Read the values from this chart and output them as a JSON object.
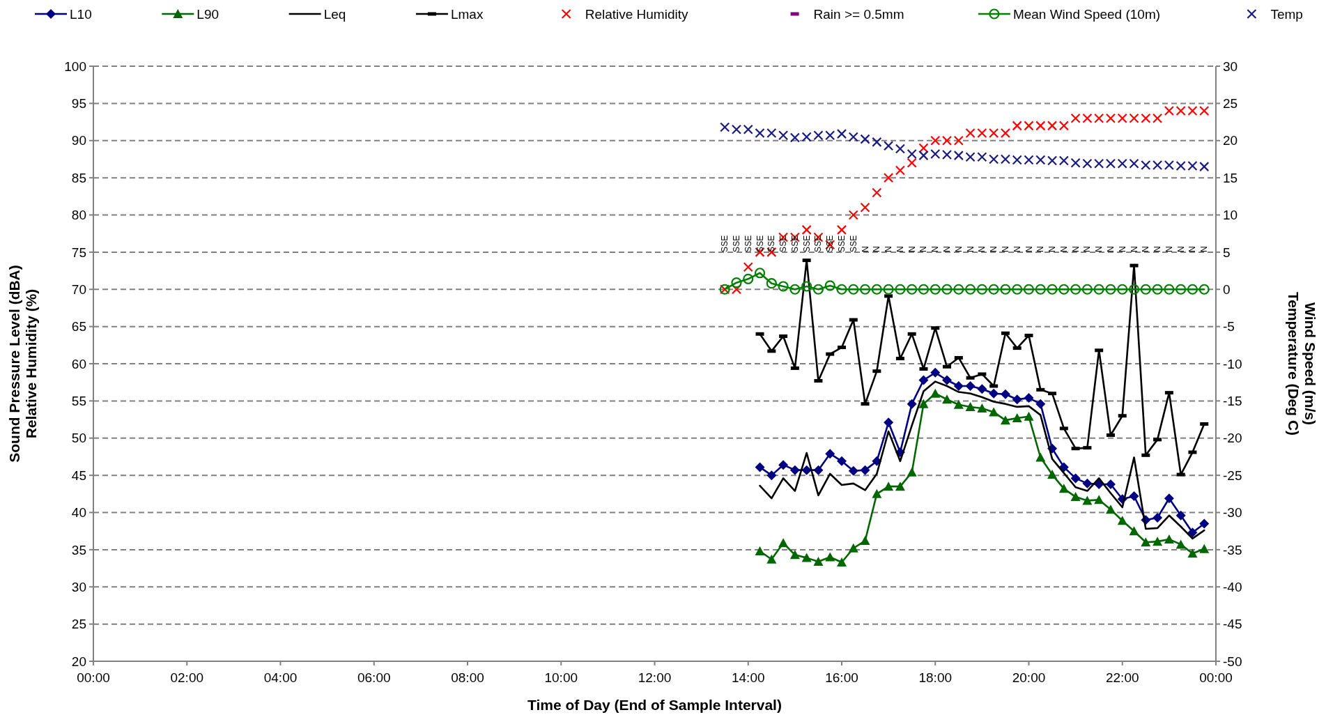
{
  "chart_data": {
    "type": "line",
    "xlabel": "Time of Day (End of Sample Interval)",
    "ylabel": "Sound Pressure Level (dBA)\nRelative Humidity (%)",
    "y2label": "Wind Speed (m/s)\nTemperature (Deg C)",
    "x": [
      13.5,
      13.75,
      14,
      14.25,
      14.5,
      14.75,
      15,
      15.25,
      15.5,
      15.75,
      16,
      16.25,
      16.5,
      16.75,
      17,
      17.25,
      17.5,
      17.75,
      18,
      18.25,
      18.5,
      18.75,
      19,
      19.25,
      19.5,
      19.75,
      20,
      20.25,
      20.5,
      20.75,
      21,
      21.25,
      21.5,
      21.75,
      22,
      22.25,
      22.5,
      22.75,
      23,
      23.25,
      23.5,
      23.75
    ],
    "xlim": [
      0,
      24
    ],
    "xticks": [
      {
        "value": 0,
        "label": "00:00"
      },
      {
        "value": 2,
        "label": "02:00"
      },
      {
        "value": 4,
        "label": "04:00"
      },
      {
        "value": 6,
        "label": "06:00"
      },
      {
        "value": 8,
        "label": "08:00"
      },
      {
        "value": 10,
        "label": "10:00"
      },
      {
        "value": 12,
        "label": "12:00"
      },
      {
        "value": 14,
        "label": "14:00"
      },
      {
        "value": 16,
        "label": "16:00"
      },
      {
        "value": 18,
        "label": "18:00"
      },
      {
        "value": 20,
        "label": "20:00"
      },
      {
        "value": 22,
        "label": "22:00"
      },
      {
        "value": 24,
        "label": "00:00"
      }
    ],
    "ylim": [
      20,
      100
    ],
    "yticks": [
      20,
      25,
      30,
      35,
      40,
      45,
      50,
      55,
      60,
      65,
      70,
      75,
      80,
      85,
      90,
      95,
      100
    ],
    "y2lim": [
      -50,
      30
    ],
    "y2ticks": [
      -50,
      -45,
      -40,
      -35,
      -30,
      -25,
      -20,
      -15,
      -10,
      -5,
      0,
      5,
      10,
      15,
      20,
      25,
      30
    ],
    "grid": "y",
    "legend": "top",
    "series": [
      {
        "name": "L10",
        "marker": "diamond",
        "color": "#000080",
        "values": [
          null,
          null,
          null,
          46.1,
          45.0,
          46.4,
          45.7,
          45.7,
          45.7,
          47.9,
          46.9,
          45.6,
          45.7,
          46.9,
          52.1,
          48.1,
          54.6,
          57.8,
          58.8,
          57.8,
          57.0,
          57.0,
          56.6,
          56.0,
          55.9,
          55.2,
          55.4,
          54.6,
          48.6,
          46.1,
          44.6,
          43.9,
          43.8,
          43.8,
          41.8,
          42.2,
          39.0,
          39.3,
          41.9,
          39.6,
          37.3,
          38.5
        ]
      },
      {
        "name": "L90",
        "marker": "triangle",
        "color": "#006600",
        "values": [
          null,
          null,
          null,
          34.8,
          33.7,
          35.9,
          34.3,
          33.9,
          33.4,
          34.0,
          33.3,
          35.2,
          36.2,
          42.5,
          43.5,
          43.5,
          45.4,
          54.6,
          56.0,
          55.2,
          54.5,
          54.2,
          54.0,
          53.5,
          52.4,
          52.7,
          52.9,
          47.4,
          45.1,
          43.2,
          42.1,
          41.6,
          41.7,
          40.4,
          38.9,
          37.5,
          36.0,
          36.1,
          36.4,
          35.7,
          34.5,
          35.1
        ]
      },
      {
        "name": "Leq",
        "marker": "none",
        "color": "#000000",
        "values": [
          null,
          null,
          null,
          43.6,
          41.9,
          44.6,
          42.9,
          48.0,
          42.3,
          45.2,
          43.7,
          43.9,
          43.0,
          45.2,
          50.9,
          46.9,
          51.7,
          56.3,
          57.6,
          57.0,
          56.2,
          56.0,
          55.5,
          54.9,
          54.6,
          54.2,
          54.3,
          53.1,
          47.2,
          45.3,
          43.4,
          42.9,
          44.6,
          42.6,
          40.7,
          47.4,
          37.8,
          37.9,
          39.6,
          38.1,
          36.5,
          37.6
        ]
      },
      {
        "name": "Lmax",
        "marker": "square",
        "color": "#000000",
        "values": [
          null,
          null,
          null,
          64.0,
          61.7,
          63.7,
          59.4,
          73.9,
          57.7,
          61.3,
          62.2,
          65.9,
          54.6,
          59.0,
          69.1,
          60.7,
          64.0,
          59.3,
          64.8,
          59.6,
          60.8,
          58.1,
          58.6,
          57.0,
          64.1,
          62.1,
          63.8,
          56.5,
          56.0,
          51.3,
          48.6,
          48.7,
          61.8,
          50.4,
          53.0,
          73.2,
          47.7,
          49.8,
          56.1,
          45.1,
          48.1,
          51.9
        ]
      },
      {
        "name": "Relative Humidity",
        "type": "scatter",
        "marker": "cross",
        "color": "#ff0000",
        "values": [
          70,
          70,
          73,
          75,
          75,
          77,
          77,
          78,
          77,
          76,
          78,
          80,
          81,
          83,
          85,
          86,
          87,
          89,
          90,
          90,
          90,
          91,
          91,
          91,
          91,
          92,
          92,
          92,
          92,
          92,
          93,
          93,
          93,
          93,
          93,
          93,
          93,
          93,
          94,
          94,
          94,
          94
        ]
      },
      {
        "name": "Rain >= 0.5mm",
        "type": "scatter",
        "marker": "square",
        "color": "#800080",
        "values": [
          null,
          null,
          null,
          null,
          null,
          null,
          null,
          null,
          null,
          null,
          null,
          null,
          null,
          null,
          null,
          null,
          null,
          null,
          null,
          null,
          null,
          null,
          null,
          null,
          null,
          null,
          null,
          null,
          null,
          null,
          null,
          null,
          null,
          null,
          null,
          null,
          null,
          null,
          null,
          null,
          null,
          null
        ]
      },
      {
        "name": "Mean Wind Speed (10m)",
        "marker": "circle",
        "axis": "y2",
        "color": "#008000",
        "values": [
          0,
          0.9,
          1.4,
          2.2,
          0.8,
          0.4,
          0,
          0.4,
          0,
          0.5,
          0,
          0,
          0,
          0,
          0,
          0,
          0,
          0,
          0,
          0,
          0,
          0,
          0,
          0,
          0,
          0,
          0,
          0,
          0,
          0,
          0,
          0,
          0,
          0,
          0,
          0,
          0,
          0,
          0,
          0,
          0,
          0
        ]
      },
      {
        "name": "Temp",
        "type": "scatter",
        "marker": "cross",
        "axis": "y2",
        "color": "#1a1a80",
        "values": [
          21.8,
          21.5,
          21.5,
          21,
          21,
          20.7,
          20.4,
          20.5,
          20.7,
          20.7,
          20.9,
          20.5,
          20.2,
          19.8,
          19.3,
          18.9,
          18.2,
          18,
          18.2,
          18.1,
          18,
          17.8,
          17.8,
          17.5,
          17.5,
          17.4,
          17.4,
          17.4,
          17.3,
          17.3,
          17,
          16.9,
          16.9,
          16.9,
          16.9,
          16.9,
          16.7,
          16.7,
          16.7,
          16.6,
          16.6,
          16.5
        ]
      }
    ],
    "annotations": [
      "SSE",
      "SSE",
      "SSE",
      "SSE",
      "SSE",
      "SSE",
      "SSE",
      "SSE",
      "SSE",
      "SSE",
      "SSE",
      "SSE",
      "N",
      "N",
      "N",
      "N",
      "N",
      "N",
      "N",
      "N",
      "N",
      "N",
      "N",
      "N",
      "N",
      "N",
      "N",
      "N",
      "N",
      "N",
      "N",
      "N",
      "N",
      "N",
      "N",
      "N",
      "N",
      "N",
      "N",
      "N",
      "N",
      "N"
    ]
  }
}
